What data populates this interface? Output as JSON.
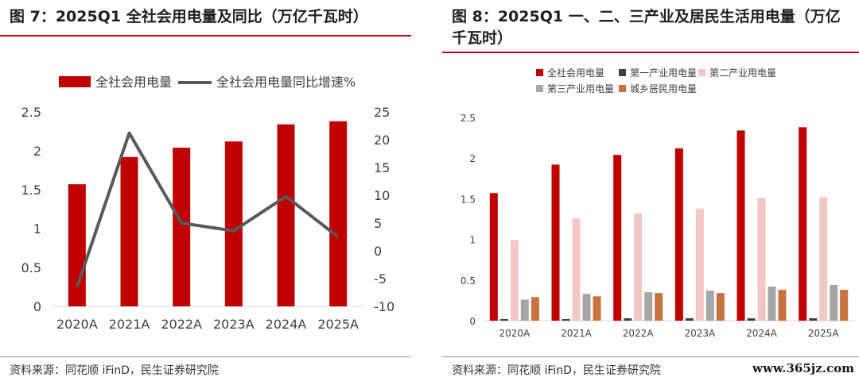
{
  "left": {
    "title": "图 7：2025Q1 全社会用电量及同比（万亿千瓦时）",
    "source": "资料来源：同花顺 iFinD，民生证券研究院",
    "colors": {
      "bar": "#c00000",
      "line": "#595959",
      "rule": "#c0000c"
    }
  },
  "right": {
    "title": "图 8：2025Q1 一、二、三产业及居民生活用电量（万亿千瓦时）",
    "source": "资料来源：同花顺 iFinD，民生证券研究院",
    "watermark": "www.365jz.com"
  },
  "chart_data": [
    {
      "type": "bar",
      "categories": [
        "2020A",
        "2021A",
        "2022A",
        "2023A",
        "2024A",
        "2025A"
      ],
      "series": [
        {
          "name": "全社会用电量",
          "type": "bar",
          "axis": "left",
          "values": [
            1.57,
            1.92,
            2.04,
            2.12,
            2.34,
            2.38
          ],
          "color": "#c00000"
        },
        {
          "name": "全社会用电量同比增速%",
          "type": "line",
          "axis": "right",
          "values": [
            -6.5,
            21.2,
            5.0,
            3.6,
            9.8,
            2.5
          ],
          "color": "#595959"
        }
      ],
      "ylim_left": [
        0,
        2.5
      ],
      "yticks_left": [
        "0",
        "0.5",
        "1",
        "1.5",
        "2",
        "2.5"
      ],
      "ylim_right": [
        -10,
        25
      ],
      "yticks_right": [
        "-10",
        "-5",
        "0",
        "5",
        "10",
        "15",
        "20",
        "25"
      ],
      "legend_position": "top",
      "grid": false
    },
    {
      "type": "bar",
      "categories": [
        "2020A",
        "2021A",
        "2022A",
        "2023A",
        "2024A",
        "2025A"
      ],
      "series": [
        {
          "name": "全社会用电量",
          "values": [
            1.57,
            1.92,
            2.04,
            2.12,
            2.34,
            2.38
          ],
          "color": "#c00000"
        },
        {
          "name": "第一产业用电量",
          "values": [
            0.02,
            0.02,
            0.03,
            0.03,
            0.03,
            0.03
          ],
          "color": "#404040"
        },
        {
          "name": "第二产业用电量",
          "values": [
            0.99,
            1.26,
            1.32,
            1.38,
            1.51,
            1.52
          ],
          "color": "#f4c7c7"
        },
        {
          "name": "第三产业用电量",
          "values": [
            0.26,
            0.33,
            0.35,
            0.37,
            0.42,
            0.44
          ],
          "color": "#a6a6a6"
        },
        {
          "name": "城乡居民用电量",
          "values": [
            0.29,
            0.3,
            0.34,
            0.34,
            0.38,
            0.38
          ],
          "color": "#c8733f"
        }
      ],
      "ylim": [
        0,
        2.5
      ],
      "yticks": [
        "0",
        "0.5",
        "1",
        "1.5",
        "2",
        "2.5"
      ],
      "legend_position": "top",
      "grid": false
    }
  ]
}
